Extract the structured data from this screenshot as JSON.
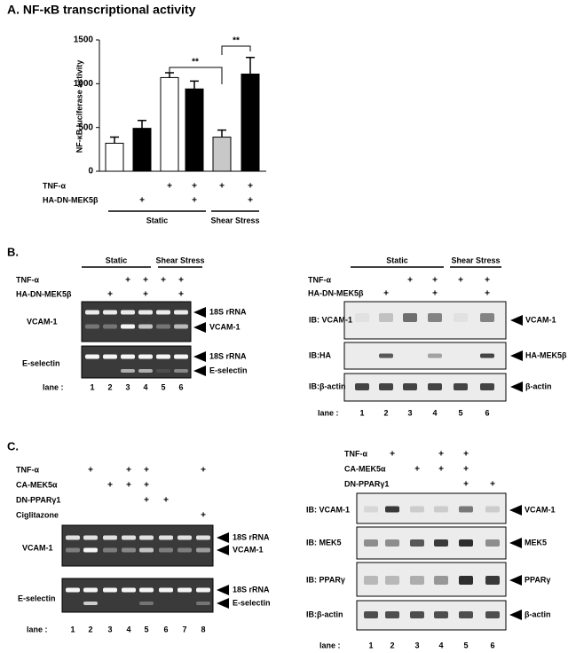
{
  "chart_data": {
    "type": "bar",
    "title": "A. NF-κB transcriptional activity",
    "ylabel": "NF-κB luciferase activity",
    "values": [
      320,
      490,
      1070,
      940,
      390,
      1110
    ],
    "errors": [
      70,
      90,
      55,
      90,
      80,
      190
    ],
    "colors": [
      "#ffffff",
      "#000000",
      "#ffffff",
      "#000000",
      "#c8c8c8",
      "#000000"
    ],
    "ylim": [
      0,
      1500
    ],
    "yticks": [
      0,
      500,
      1000,
      1500
    ],
    "annotations": [
      "**",
      "**"
    ],
    "conditions": [
      {
        "label": "TNF-α",
        "marks": [
          null,
          null,
          "+",
          "+",
          "+",
          "+"
        ]
      },
      {
        "label": "HA-DN-MEK5β",
        "marks": [
          null,
          "+",
          null,
          "+",
          null,
          "+"
        ]
      }
    ],
    "groups": [
      "Static",
      "Shear Stress"
    ]
  },
  "panel_b": {
    "label": "B.",
    "left": {
      "groups": [
        "Static",
        "Shear Stress"
      ],
      "conditions": [
        {
          "label": "TNF-α",
          "marks": [
            null,
            null,
            "+",
            "+",
            "+",
            "+"
          ]
        },
        {
          "label": "HA-DN-MEK5β",
          "marks": [
            null,
            "+",
            null,
            "+",
            null,
            "+"
          ]
        }
      ],
      "gels": [
        {
          "label": "VCAM-1",
          "bands": [
            "18S rRNA",
            "VCAM-1"
          ]
        },
        {
          "label": "E-selectin",
          "bands": [
            "18S rRNA",
            "E-selectin"
          ]
        }
      ],
      "lane_label": "lane :",
      "lanes": [
        1,
        2,
        3,
        4,
        5,
        6
      ]
    },
    "right": {
      "groups": [
        "Static",
        "Shear Stress"
      ],
      "conditions": [
        {
          "label": "TNF-α",
          "marks": [
            null,
            null,
            "+",
            "+",
            "+",
            "+"
          ]
        },
        {
          "label": "HA-DN-MEK5β",
          "marks": [
            null,
            "+",
            null,
            "+",
            null,
            "+"
          ]
        }
      ],
      "blots": [
        {
          "label": "IB: VCAM-1",
          "target": "VCAM-1"
        },
        {
          "label": "IB:HA",
          "target": "HA-MEK5β"
        },
        {
          "label": "IB:β-actin",
          "target": "β-actin"
        }
      ],
      "lane_label": "lane :",
      "lanes": [
        1,
        2,
        3,
        4,
        5,
        6
      ]
    }
  },
  "panel_c": {
    "label": "C.",
    "left": {
      "conditions": [
        {
          "label": "TNF-α",
          "marks": [
            null,
            "+",
            null,
            "+",
            "+",
            null,
            null,
            "+"
          ]
        },
        {
          "label": "CA-MEK5α",
          "marks": [
            null,
            null,
            "+",
            "+",
            "+",
            null,
            null,
            null
          ]
        },
        {
          "label": "DN-PPARγ1",
          "marks": [
            null,
            null,
            null,
            null,
            "+",
            "+",
            null,
            null
          ]
        },
        {
          "label": "Ciglitazone",
          "marks": [
            null,
            null,
            null,
            null,
            null,
            null,
            null,
            "+"
          ]
        }
      ],
      "gels": [
        {
          "label": "VCAM-1",
          "bands": [
            "18S rRNA",
            "VCAM-1"
          ]
        },
        {
          "label": "E-selectin",
          "bands": [
            "18S rRNA",
            "E-selectin"
          ]
        }
      ],
      "lane_label": "lane :",
      "lanes": [
        1,
        2,
        3,
        4,
        5,
        6,
        7,
        8
      ]
    },
    "right": {
      "conditions": [
        {
          "label": "TNF-α",
          "marks": [
            null,
            "+",
            null,
            "+",
            "+",
            null
          ]
        },
        {
          "label": "CA-MEK5α",
          "marks": [
            null,
            null,
            "+",
            "+",
            "+",
            null
          ]
        },
        {
          "label": "DN-PPARγ1",
          "marks": [
            null,
            null,
            null,
            null,
            "+",
            "+"
          ]
        }
      ],
      "blots": [
        {
          "label": "IB: VCAM-1",
          "target": "VCAM-1"
        },
        {
          "label": "IB: MEK5",
          "target": "MEK5"
        },
        {
          "label": "IB: PPARγ",
          "target": "PPARγ"
        },
        {
          "label": "IB:β-actin",
          "target": "β-actin"
        }
      ],
      "lane_label": "lane :",
      "lanes": [
        1,
        2,
        3,
        4,
        5,
        6
      ]
    }
  }
}
